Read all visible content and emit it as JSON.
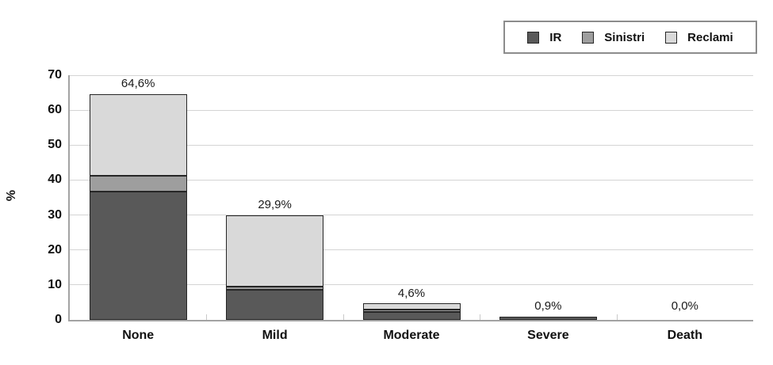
{
  "chart_data": {
    "type": "bar",
    "stacked": true,
    "title": "",
    "xlabel": "",
    "ylabel": "%",
    "categories": [
      "None",
      "Mild",
      "Moderate",
      "Severe",
      "Death"
    ],
    "series": [
      {
        "name": "IR",
        "color": "#595959",
        "values": [
          36.7,
          8.5,
          2.3,
          0.9,
          0.0
        ]
      },
      {
        "name": "Sinistri",
        "color": "#9e9e9e",
        "values": [
          4.6,
          1.0,
          0.6,
          0.0,
          0.0
        ]
      },
      {
        "name": "Reclami",
        "color": "#d9d9d9",
        "values": [
          23.3,
          20.4,
          1.7,
          0.0,
          0.0
        ]
      }
    ],
    "totals": [
      64.6,
      29.9,
      4.6,
      0.9,
      0.0
    ],
    "total_labels": [
      "64,6%",
      "29,9%",
      "4,6%",
      "0,9%",
      "0,0%"
    ],
    "yticks": [
      0,
      10,
      20,
      30,
      40,
      50,
      60,
      70
    ],
    "ylim": [
      0,
      70
    ],
    "grid": true,
    "legend_position": "top-right",
    "legend_entries": [
      "IR",
      "Sinistri",
      "Reclami"
    ]
  },
  "colors": {
    "axis": "#a3a3a3",
    "gridline": "#d4d4d4",
    "segment_border": "#262626",
    "legend_border": "#8c8c8c",
    "background": "#ffffff"
  }
}
